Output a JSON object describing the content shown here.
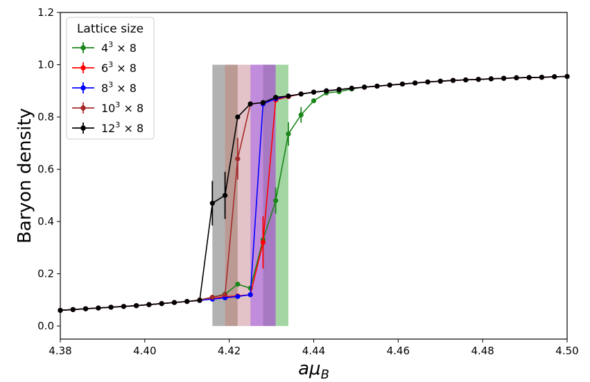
{
  "chart_data": {
    "type": "line",
    "xlabel": "aμB",
    "ylabel": "Baryon density",
    "xlim": [
      4.38,
      4.5
    ],
    "ylim": [
      -0.05,
      1.2
    ],
    "xticks": [
      "4.38",
      "4.40",
      "4.42",
      "4.44",
      "4.46",
      "4.48",
      "4.50"
    ],
    "yticks": [
      "0.0",
      "0.2",
      "0.4",
      "0.6",
      "0.8",
      "1.0",
      "1.2"
    ],
    "grid": false,
    "legend": {
      "title": "Lattice size",
      "placement": "top-left"
    },
    "bands": [
      {
        "x0": 4.416,
        "x1": 4.419,
        "y0": 0.0,
        "y1": 1.0,
        "color": "#7f7f7f"
      },
      {
        "x0": 4.419,
        "x1": 4.422,
        "y0": 0.0,
        "y1": 1.0,
        "color": "#8c564b"
      },
      {
        "x0": 4.422,
        "x1": 4.425,
        "y0": 0.0,
        "y1": 1.0,
        "color": "#d09aa4"
      },
      {
        "x0": 4.425,
        "x1": 4.428,
        "y0": 0.0,
        "y1": 1.0,
        "color": "#9a3fc4"
      },
      {
        "x0": 4.428,
        "x1": 4.431,
        "y0": 0.0,
        "y1": 1.0,
        "color": "#6a1f9a"
      },
      {
        "x0": 4.431,
        "x1": 4.434,
        "y0": 0.0,
        "y1": 1.0,
        "color": "#66bb66"
      }
    ],
    "series": [
      {
        "name": "4",
        "dims": "× 8",
        "color": "#1a861a",
        "x": [
          4.38,
          4.383,
          4.386,
          4.389,
          4.392,
          4.395,
          4.398,
          4.401,
          4.404,
          4.407,
          4.41,
          4.413,
          4.416,
          4.419,
          4.422,
          4.425,
          4.428,
          4.431,
          4.434,
          4.437,
          4.44,
          4.443,
          4.446,
          4.449,
          4.452,
          4.455,
          4.458,
          4.461,
          4.464,
          4.467,
          4.47,
          4.473,
          4.476,
          4.479,
          4.482,
          4.485,
          4.488,
          4.491,
          4.494,
          4.497,
          4.5
        ],
        "y": [
          0.06,
          0.063,
          0.066,
          0.069,
          0.072,
          0.075,
          0.078,
          0.082,
          0.086,
          0.09,
          0.094,
          0.1,
          0.11,
          0.122,
          0.16,
          0.145,
          0.33,
          0.48,
          0.735,
          0.808,
          0.862,
          0.892,
          0.897,
          0.907,
          0.915,
          0.918,
          0.922,
          0.926,
          0.93,
          0.934,
          0.937,
          0.94,
          0.942,
          0.944,
          0.946,
          0.948,
          0.95,
          0.951,
          0.952,
          0.954,
          0.955
        ],
        "err": [
          0,
          0,
          0,
          0,
          0,
          0,
          0,
          0,
          0,
          0,
          0,
          0,
          0,
          0,
          0,
          0,
          0.03,
          0.05,
          0.045,
          0.03,
          0,
          0,
          0,
          0,
          0,
          0,
          0,
          0,
          0,
          0,
          0,
          0,
          0,
          0,
          0,
          0,
          0,
          0,
          0,
          0,
          0
        ]
      },
      {
        "name": "6",
        "dims": "× 8",
        "color": "#ff0000",
        "x": [
          4.38,
          4.383,
          4.386,
          4.389,
          4.392,
          4.395,
          4.398,
          4.401,
          4.404,
          4.407,
          4.41,
          4.413,
          4.416,
          4.419,
          4.422,
          4.425,
          4.428,
          4.431,
          4.434,
          4.437,
          4.44,
          4.443,
          4.446,
          4.449,
          4.452,
          4.455,
          4.458,
          4.461,
          4.464,
          4.467,
          4.47,
          4.473,
          4.476,
          4.479,
          4.482,
          4.485,
          4.488,
          4.491,
          4.494,
          4.497,
          4.5
        ],
        "y": [
          0.06,
          0.063,
          0.066,
          0.069,
          0.072,
          0.075,
          0.078,
          0.082,
          0.086,
          0.09,
          0.094,
          0.098,
          0.105,
          0.112,
          0.115,
          0.12,
          0.32,
          0.865,
          0.878,
          0.888,
          0.895,
          0.9,
          0.905,
          0.91,
          0.914,
          0.918,
          0.922,
          0.926,
          0.93,
          0.934,
          0.937,
          0.94,
          0.942,
          0.944,
          0.946,
          0.948,
          0.95,
          0.951,
          0.952,
          0.954,
          0.955
        ],
        "err": [
          0,
          0,
          0,
          0,
          0,
          0,
          0,
          0,
          0,
          0,
          0,
          0,
          0,
          0,
          0,
          0,
          0.1,
          0,
          0,
          0,
          0,
          0,
          0,
          0,
          0,
          0,
          0,
          0,
          0,
          0,
          0,
          0,
          0,
          0,
          0,
          0,
          0,
          0,
          0,
          0,
          0
        ]
      },
      {
        "name": "8",
        "dims": "× 8",
        "color": "#0000ff",
        "x": [
          4.38,
          4.383,
          4.386,
          4.389,
          4.392,
          4.395,
          4.398,
          4.401,
          4.404,
          4.407,
          4.41,
          4.413,
          4.416,
          4.419,
          4.422,
          4.425,
          4.428,
          4.431,
          4.434,
          4.437,
          4.44,
          4.443,
          4.446,
          4.449,
          4.452,
          4.455,
          4.458,
          4.461,
          4.464,
          4.467,
          4.47,
          4.473,
          4.476,
          4.479,
          4.482,
          4.485,
          4.488,
          4.491,
          4.494,
          4.497,
          4.5
        ],
        "y": [
          0.06,
          0.063,
          0.066,
          0.069,
          0.072,
          0.075,
          0.078,
          0.082,
          0.086,
          0.09,
          0.094,
          0.098,
          0.103,
          0.108,
          0.113,
          0.12,
          0.85,
          0.87,
          0.88,
          0.888,
          0.895,
          0.9,
          0.905,
          0.91,
          0.914,
          0.918,
          0.922,
          0.926,
          0.93,
          0.934,
          0.937,
          0.94,
          0.942,
          0.944,
          0.946,
          0.948,
          0.95,
          0.951,
          0.952,
          0.954,
          0.955
        ],
        "err": [
          0,
          0,
          0,
          0,
          0,
          0,
          0,
          0,
          0,
          0,
          0,
          0,
          0,
          0,
          0,
          0,
          0,
          0,
          0,
          0,
          0,
          0,
          0,
          0,
          0,
          0,
          0,
          0,
          0,
          0,
          0,
          0,
          0,
          0,
          0,
          0,
          0,
          0,
          0,
          0,
          0
        ]
      },
      {
        "name": "10",
        "dims": "× 8",
        "color": "#a52a2a",
        "x": [
          4.38,
          4.383,
          4.386,
          4.389,
          4.392,
          4.395,
          4.398,
          4.401,
          4.404,
          4.407,
          4.41,
          4.413,
          4.416,
          4.419,
          4.422,
          4.425,
          4.428,
          4.431,
          4.434,
          4.437,
          4.44,
          4.443,
          4.446,
          4.449,
          4.452,
          4.455,
          4.458,
          4.461,
          4.464,
          4.467,
          4.47,
          4.473,
          4.476,
          4.479,
          4.482,
          4.485,
          4.488,
          4.491,
          4.494,
          4.497,
          4.5
        ],
        "y": [
          0.06,
          0.063,
          0.066,
          0.069,
          0.072,
          0.075,
          0.078,
          0.082,
          0.086,
          0.09,
          0.094,
          0.1,
          0.11,
          0.12,
          0.64,
          0.85,
          0.855,
          0.875,
          0.88,
          0.888,
          0.895,
          0.9,
          0.905,
          0.91,
          0.914,
          0.918,
          0.922,
          0.926,
          0.93,
          0.934,
          0.937,
          0.94,
          0.942,
          0.944,
          0.946,
          0.948,
          0.95,
          0.951,
          0.952,
          0.954,
          0.955
        ],
        "err": [
          0,
          0,
          0,
          0,
          0,
          0,
          0,
          0,
          0,
          0,
          0,
          0,
          0,
          0,
          0.08,
          0,
          0,
          0,
          0,
          0,
          0,
          0,
          0,
          0,
          0,
          0,
          0,
          0,
          0,
          0,
          0,
          0,
          0,
          0,
          0,
          0,
          0,
          0,
          0,
          0,
          0
        ]
      },
      {
        "name": "12",
        "dims": "× 8",
        "color": "#000000",
        "x": [
          4.38,
          4.383,
          4.386,
          4.389,
          4.392,
          4.395,
          4.398,
          4.401,
          4.404,
          4.407,
          4.41,
          4.413,
          4.416,
          4.419,
          4.422,
          4.425,
          4.428,
          4.431,
          4.434,
          4.437,
          4.44,
          4.443,
          4.446,
          4.449,
          4.452,
          4.455,
          4.458,
          4.461,
          4.464,
          4.467,
          4.47,
          4.473,
          4.476,
          4.479,
          4.482,
          4.485,
          4.488,
          4.491,
          4.494,
          4.497,
          4.5
        ],
        "y": [
          0.06,
          0.063,
          0.066,
          0.069,
          0.072,
          0.075,
          0.078,
          0.082,
          0.086,
          0.09,
          0.094,
          0.098,
          0.47,
          0.5,
          0.8,
          0.85,
          0.855,
          0.875,
          0.88,
          0.888,
          0.895,
          0.9,
          0.905,
          0.91,
          0.914,
          0.918,
          0.922,
          0.926,
          0.93,
          0.934,
          0.937,
          0.94,
          0.942,
          0.944,
          0.946,
          0.948,
          0.95,
          0.951,
          0.952,
          0.954,
          0.955
        ],
        "err": [
          0,
          0,
          0,
          0,
          0,
          0,
          0,
          0,
          0,
          0,
          0,
          0,
          0.085,
          0.09,
          0,
          0,
          0,
          0,
          0,
          0,
          0,
          0,
          0,
          0,
          0,
          0,
          0,
          0,
          0,
          0,
          0,
          0,
          0,
          0,
          0,
          0,
          0,
          0,
          0,
          0,
          0
        ]
      }
    ]
  }
}
